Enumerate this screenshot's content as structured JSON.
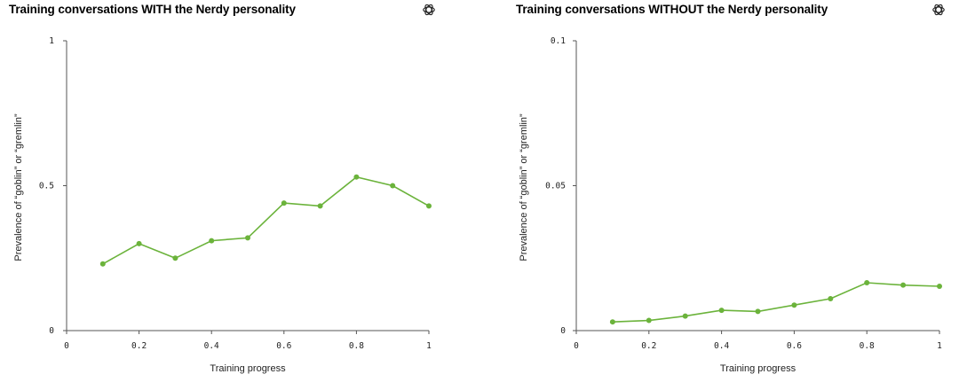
{
  "colors": {
    "series": "#6bb33b",
    "axis": "#555555",
    "text": "#222222"
  },
  "logo_icon": "openai-logo-icon",
  "chart_data": [
    {
      "type": "line",
      "title": "Training conversations WITH the Nerdy personality",
      "xlabel": "Training progress",
      "ylabel": "Prevalence of “goblin” or “gremlin”",
      "xlim": [
        0,
        1
      ],
      "ylim": [
        0,
        1
      ],
      "xticks": [
        0,
        0.2,
        0.4,
        0.6,
        0.8,
        1
      ],
      "xtick_labels": [
        "0",
        "0.2",
        "0.4",
        "0.6",
        "0.8",
        "1"
      ],
      "yticks": [
        0,
        0.5,
        1
      ],
      "ytick_labels": [
        "0",
        "0.5",
        "1"
      ],
      "grid": false,
      "series": [
        {
          "name": "Prevalence",
          "x": [
            0.1,
            0.2,
            0.3,
            0.4,
            0.5,
            0.6,
            0.7,
            0.8,
            0.9,
            1.0
          ],
          "y": [
            0.23,
            0.3,
            0.25,
            0.31,
            0.32,
            0.44,
            0.43,
            0.53,
            0.5,
            0.43
          ]
        }
      ]
    },
    {
      "type": "line",
      "title": "Training conversations WITHOUT the Nerdy personality",
      "xlabel": "Training progress",
      "ylabel": "Prevalence of “goblin” or “gremlin”",
      "xlim": [
        0,
        1
      ],
      "ylim": [
        0,
        0.1
      ],
      "xticks": [
        0,
        0.2,
        0.4,
        0.6,
        0.8,
        1
      ],
      "xtick_labels": [
        "0",
        "0.2",
        "0.4",
        "0.6",
        "0.8",
        "1"
      ],
      "yticks": [
        0,
        0.05,
        0.1
      ],
      "ytick_labels": [
        "0",
        "0.05",
        "0.1"
      ],
      "grid": false,
      "series": [
        {
          "name": "Prevalence",
          "x": [
            0.1,
            0.2,
            0.3,
            0.4,
            0.5,
            0.6,
            0.7,
            0.8,
            0.9,
            1.0
          ],
          "y": [
            0.003,
            0.0035,
            0.005,
            0.007,
            0.0066,
            0.0088,
            0.011,
            0.0165,
            0.0157,
            0.0153
          ]
        }
      ]
    }
  ]
}
